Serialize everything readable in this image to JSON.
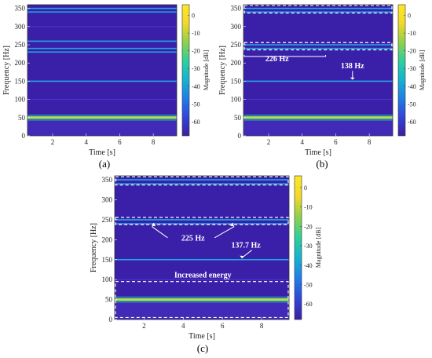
{
  "colors": {
    "background": "#3a1fa8",
    "harmonic_faint": "#4a3bd6",
    "harmonic_cyan": "#22a8e0",
    "harmonic_bright": "#b8e04a",
    "annotation": "#ffffff"
  },
  "colorbar": {
    "label": "Magnitude [dB]",
    "ticks": [
      "0",
      "-10",
      "-20",
      "-30",
      "-40",
      "-50",
      "-60"
    ],
    "range": [
      -68,
      6
    ],
    "colors": [
      "#3b1f9e",
      "#3245d8",
      "#1f7ee8",
      "#15b3d1",
      "#2fcf9a",
      "#8fd14a",
      "#f2d92b",
      "#fde725"
    ]
  },
  "chart_data": [
    {
      "type": "heatmap",
      "panel_label": "(a)",
      "xlabel": "Time [s]",
      "ylabel": "Frequency [Hz]",
      "xlim": [
        0.5,
        9.4
      ],
      "ylim": [
        0,
        360
      ],
      "xticks": [
        "2",
        "4",
        "6",
        "8"
      ],
      "yticks": [
        "0",
        "50",
        "100",
        "150",
        "200",
        "250",
        "300",
        "350"
      ],
      "harmonic_lines": [
        {
          "freq": 50,
          "level": "bright"
        },
        {
          "freq": 100,
          "level": "faint"
        },
        {
          "freq": 150,
          "level": "cyan"
        },
        {
          "freq": 230,
          "level": "cyan"
        },
        {
          "freq": 240,
          "level": "cyan"
        },
        {
          "freq": 260,
          "level": "cyan"
        },
        {
          "freq": 300,
          "level": "faint"
        },
        {
          "freq": 340,
          "level": "cyan"
        },
        {
          "freq": 350,
          "level": "cyan"
        }
      ],
      "boxes": [],
      "annotations": []
    },
    {
      "type": "heatmap",
      "panel_label": "(b)",
      "xlabel": "Time [s]",
      "ylabel": "Frequency [Hz]",
      "xlim": [
        0.5,
        9.4
      ],
      "ylim": [
        0,
        360
      ],
      "xticks": [
        "2",
        "4",
        "6",
        "8"
      ],
      "yticks": [
        "0",
        "50",
        "100",
        "150",
        "200",
        "250",
        "300",
        "350"
      ],
      "harmonic_lines": [
        {
          "freq": 50,
          "level": "bright"
        },
        {
          "freq": 100,
          "level": "faint"
        },
        {
          "freq": 150,
          "level": "cyan"
        },
        {
          "freq": 240,
          "level": "cyan"
        },
        {
          "freq": 250,
          "level": "cyan"
        },
        {
          "freq": 340,
          "level": "cyan"
        },
        {
          "freq": 350,
          "level": "cyan"
        }
      ],
      "boxes": [
        {
          "f0": 337,
          "f1": 358
        },
        {
          "f0": 236,
          "f1": 256
        }
      ],
      "annotations": [
        {
          "text": "226 Hz",
          "t": 2.5,
          "f": 205
        },
        {
          "text": "138 Hz",
          "t": 7.0,
          "f": 185
        }
      ]
    },
    {
      "type": "heatmap",
      "panel_label": "(c)",
      "xlabel": "Time [s]",
      "ylabel": "Frequency [Hz]",
      "xlim": [
        0.5,
        9.4
      ],
      "ylim": [
        0,
        360
      ],
      "xticks": [
        "2",
        "4",
        "6",
        "8"
      ],
      "yticks": [
        "0",
        "50",
        "100",
        "150",
        "200",
        "250",
        "300",
        "350"
      ],
      "harmonic_lines": [
        {
          "freq": 50,
          "level": "bright"
        },
        {
          "freq": 100,
          "level": "faint"
        },
        {
          "freq": 150,
          "level": "cyan"
        },
        {
          "freq": 240,
          "level": "cyan"
        },
        {
          "freq": 250,
          "level": "cyan"
        },
        {
          "freq": 340,
          "level": "cyan"
        },
        {
          "freq": 350,
          "level": "cyan"
        }
      ],
      "boxes": [
        {
          "f0": 337,
          "f1": 358
        },
        {
          "f0": 238,
          "f1": 256
        },
        {
          "f0": 5,
          "f1": 95
        }
      ],
      "annotations": [
        {
          "text": "225 Hz",
          "t": 4.5,
          "f": 198
        },
        {
          "text": "137.7 Hz",
          "t": 7.2,
          "f": 180
        },
        {
          "text": "Increased energy",
          "t": 5.0,
          "f": 105
        }
      ]
    }
  ]
}
